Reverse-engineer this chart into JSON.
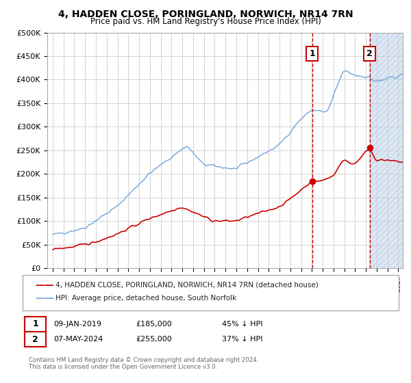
{
  "title": "4, HADDEN CLOSE, PORINGLAND, NORWICH, NR14 7RN",
  "subtitle": "Price paid vs. HM Land Registry's House Price Index (HPI)",
  "hpi_label": "HPI: Average price, detached house, South Norfolk",
  "property_label": "4, HADDEN CLOSE, PORINGLAND, NORWICH, NR14 7RN (detached house)",
  "hpi_color": "#7aaadd",
  "property_color": "#cc0000",
  "annotation1_date": "09-JAN-2019",
  "annotation1_price": "£185,000",
  "annotation1_pct": "45% ↓ HPI",
  "annotation2_date": "07-MAY-2024",
  "annotation2_price": "£255,000",
  "annotation2_pct": "37% ↓ HPI",
  "footnote": "Contains HM Land Registry data © Crown copyright and database right 2024.\nThis data is licensed under the Open Government Licence v3.0.",
  "ylim_min": 0,
  "ylim_max": 500000,
  "background_color": "#ffffff",
  "grid_color": "#cccccc",
  "sale1_price": 185000,
  "sale2_price": 255000,
  "hpi_sale1": 336364,
  "hpi_sale2": 404762
}
